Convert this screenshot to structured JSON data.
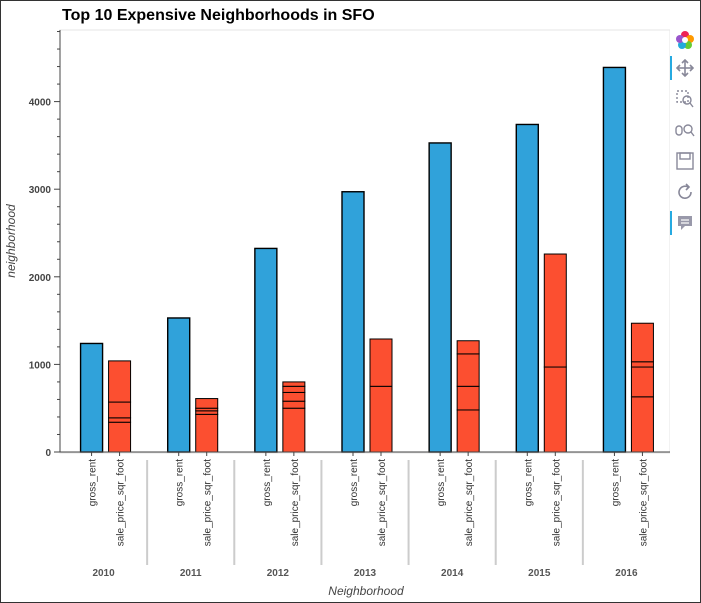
{
  "chart_data": {
    "type": "bar",
    "title": "Top 10 Expensive Neighborhoods in SFO",
    "xlabel": "Neighborhood",
    "ylabel": "neighborhood",
    "ylim": [
      0,
      4800
    ],
    "yticks": [
      0,
      1000,
      2000,
      3000,
      4000
    ],
    "grid": false,
    "groups": [
      "2010",
      "2011",
      "2012",
      "2013",
      "2014",
      "2015",
      "2016"
    ],
    "subcategories": [
      "gross_rent",
      "sale_price_sqr_foot"
    ],
    "series": [
      {
        "name": "gross_rent",
        "color": "#30a2da",
        "values": [
          1239,
          1530,
          2324,
          2971,
          3528,
          3739,
          4390
        ]
      },
      {
        "name": "sale_price_sqr_foot",
        "color": "#fc4f30",
        "stacked_segments": [
          [
            340,
            50,
            180,
            470
          ],
          [
            430,
            40,
            30,
            110
          ],
          [
            500,
            80,
            100,
            70,
            50
          ],
          [
            750,
            540
          ],
          [
            480,
            270,
            370,
            150
          ],
          [
            970,
            1290
          ],
          [
            630,
            340,
            60,
            440
          ]
        ]
      }
    ]
  },
  "toolbar": {
    "tools": [
      "bokeh-logo-icon",
      "pan-icon",
      "box-zoom-icon",
      "wheel-zoom-icon",
      "save-icon",
      "reset-icon",
      "hover-icon"
    ]
  }
}
